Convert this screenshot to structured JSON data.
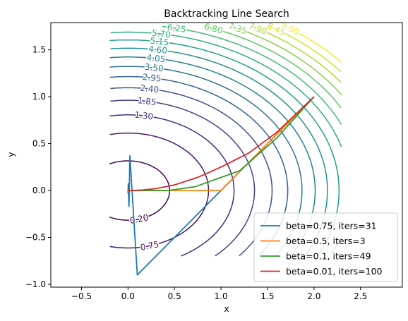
{
  "chart_data": {
    "type": "line",
    "title": "Backtracking Line Search",
    "xlabel": "x",
    "ylabel": "y",
    "xlim": [
      -0.83,
      2.95
    ],
    "ylim": [
      -1.03,
      1.79
    ],
    "xticks": [
      -0.5,
      0.0,
      0.5,
      1.0,
      1.5,
      2.0,
      2.5
    ],
    "xtick_labels": [
      "−0.5",
      "0.0",
      "0.5",
      "1.0",
      "1.5",
      "2.0",
      "2.5"
    ],
    "yticks": [
      -1.0,
      -0.5,
      0.0,
      0.5,
      1.0,
      1.5
    ],
    "ytick_labels": [
      "−1.0",
      "−0.5",
      "0.0",
      "0.5",
      "1.0",
      "1.5"
    ],
    "grid": false,
    "legend_position": "lower-right",
    "contours": {
      "function": "x^2 + 2 y^2",
      "domain_x": [
        -0.2,
        2.3
      ],
      "domain_y": [
        -0.7,
        1.75
      ],
      "levels": [
        0.2,
        0.75,
        1.3,
        1.85,
        2.4,
        2.95,
        3.5,
        4.05,
        4.6,
        5.15,
        5.7,
        6.25,
        6.8,
        7.35,
        7.9,
        8.45,
        9.0
      ],
      "inline_labels": [
        "0.20",
        "0.75",
        "1.30",
        "1.85",
        "2.40",
        "2.95",
        "3.50",
        "4.05",
        "4.60",
        "5.15",
        "5.70",
        "6.25",
        "6.80",
        "7.35",
        "7.90",
        "8.45",
        "9.00"
      ],
      "colormap": "viridis"
    },
    "series": [
      {
        "name": "beta=0.75, iters=31",
        "color": "#1f77b4",
        "x": [
          2.0,
          0.1,
          0.02,
          0.01,
          0.003,
          0.001,
          0.0
        ],
        "y": [
          1.0,
          -0.9,
          0.37,
          -0.17,
          0.07,
          -0.03,
          0.0
        ]
      },
      {
        "name": "beta=0.5, iters=3",
        "color": "#ff7f0e",
        "x": [
          2.0,
          1.0,
          0.0
        ],
        "y": [
          1.0,
          0.0,
          0.0
        ]
      },
      {
        "name": "beta=0.1, iters=49",
        "color": "#2ca02c",
        "x": [
          2.0,
          1.6,
          1.2,
          0.72,
          0.43,
          0.26,
          0.15,
          0.09,
          0.05,
          0.0
        ],
        "y": [
          1.0,
          0.56,
          0.21,
          0.04,
          0.0,
          0.0,
          0.0,
          0.0,
          0.0,
          0.0
        ]
      },
      {
        "name": "beta=0.01, iters=100",
        "color": "#d62728",
        "x": [
          2.0,
          1.6,
          1.3,
          1.0,
          0.75,
          0.5,
          0.3,
          0.15,
          0.05,
          0.0
        ],
        "y": [
          1.0,
          0.62,
          0.4,
          0.25,
          0.14,
          0.06,
          0.02,
          0.005,
          0.0,
          0.0
        ]
      }
    ]
  }
}
